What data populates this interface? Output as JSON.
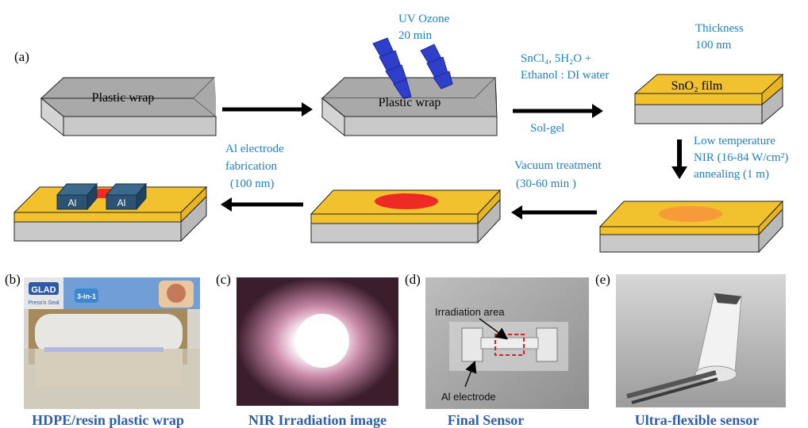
{
  "panel_labels": {
    "a": "(a)",
    "b": "(b)",
    "c": "(c)",
    "d": "(d)",
    "e": "(e)"
  },
  "steps": {
    "block1_label": "Plastic wrap",
    "block2_label": "Plastic wrap",
    "uv": [
      "UV Ozone",
      "20 min"
    ],
    "solgel_top": [
      "SnCl₄, 5H₂O +",
      "Ethanol : DI water"
    ],
    "solgel_bottom": "Sol-gel",
    "thickness": [
      "Thickness",
      "100 nm"
    ],
    "film_label": "SnO₂ film",
    "nir": [
      "Low temperature",
      "NIR (16-84 W/cm²)",
      "annealing (1 m)"
    ],
    "vacuum": [
      "Vacuum treatment",
      "(30-60 min )"
    ],
    "al_fab": [
      "Al electrode",
      "fabrication",
      "(100 nm)"
    ],
    "al_left": "Al",
    "al_right": "Al"
  },
  "photos": {
    "b_caption": "HDPE/resin plastic wrap",
    "b_box_text": "GLAD",
    "b_box_sub": "Press'n Seal",
    "b_box_badge": "3-in-1",
    "c_caption": "NIR Irradiation image",
    "d_caption": "Final Sensor",
    "d_irr": "Irradiation area",
    "d_al": "Al electrode",
    "e_caption": "Ultra-flexible sensor"
  },
  "colors": {
    "blue_text": "#1f7fc3",
    "caption_blue": "#2e5fa8",
    "gray_top": "#a9a9a9",
    "gray_front": "#c9c9c9",
    "gold": "#f2c12e",
    "red_dot": "#ee2a24",
    "orange_dot": "#f79a3a",
    "electrode": "#2c5373"
  }
}
